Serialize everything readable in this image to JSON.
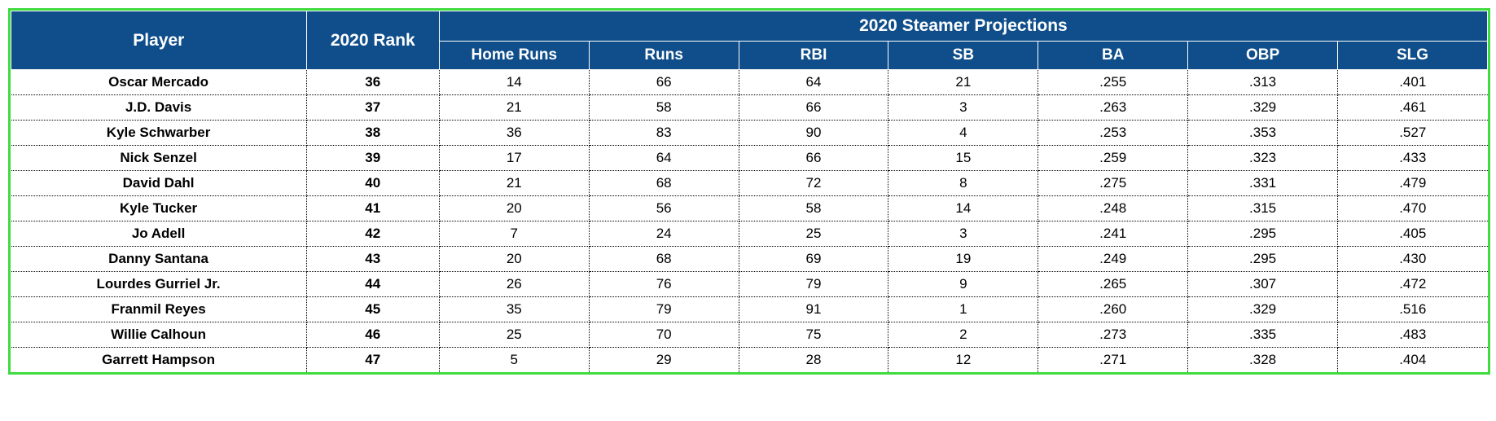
{
  "table": {
    "type": "table",
    "border_color": "#3fdb3f",
    "header_bg": "#0f4e8a",
    "header_text_color": "#ffffff",
    "body_bg": "#ffffff",
    "body_text_color": "#000000",
    "row_divider_color": "#000000",
    "header_group_label": "2020 Steamer Projections",
    "columns": {
      "player": "Player",
      "rank": "2020 Rank",
      "hr": "Home Runs",
      "runs": "Runs",
      "rbi": "RBI",
      "sb": "SB",
      "ba": "BA",
      "obp": "OBP",
      "slg": "SLG"
    },
    "rows": [
      {
        "player": "Oscar Mercado",
        "rank": "36",
        "hr": "14",
        "runs": "66",
        "rbi": "64",
        "sb": "21",
        "ba": ".255",
        "obp": ".313",
        "slg": ".401"
      },
      {
        "player": "J.D. Davis",
        "rank": "37",
        "hr": "21",
        "runs": "58",
        "rbi": "66",
        "sb": "3",
        "ba": ".263",
        "obp": ".329",
        "slg": ".461"
      },
      {
        "player": "Kyle Schwarber",
        "rank": "38",
        "hr": "36",
        "runs": "83",
        "rbi": "90",
        "sb": "4",
        "ba": ".253",
        "obp": ".353",
        "slg": ".527"
      },
      {
        "player": "Nick Senzel",
        "rank": "39",
        "hr": "17",
        "runs": "64",
        "rbi": "66",
        "sb": "15",
        "ba": ".259",
        "obp": ".323",
        "slg": ".433"
      },
      {
        "player": "David Dahl",
        "rank": "40",
        "hr": "21",
        "runs": "68",
        "rbi": "72",
        "sb": "8",
        "ba": ".275",
        "obp": ".331",
        "slg": ".479"
      },
      {
        "player": "Kyle Tucker",
        "rank": "41",
        "hr": "20",
        "runs": "56",
        "rbi": "58",
        "sb": "14",
        "ba": ".248",
        "obp": ".315",
        "slg": ".470"
      },
      {
        "player": "Jo Adell",
        "rank": "42",
        "hr": "7",
        "runs": "24",
        "rbi": "25",
        "sb": "3",
        "ba": ".241",
        "obp": ".295",
        "slg": ".405"
      },
      {
        "player": "Danny Santana",
        "rank": "43",
        "hr": "20",
        "runs": "68",
        "rbi": "69",
        "sb": "19",
        "ba": ".249",
        "obp": ".295",
        "slg": ".430"
      },
      {
        "player": "Lourdes Gurriel Jr.",
        "rank": "44",
        "hr": "26",
        "runs": "76",
        "rbi": "79",
        "sb": "9",
        "ba": ".265",
        "obp": ".307",
        "slg": ".472"
      },
      {
        "player": "Franmil Reyes",
        "rank": "45",
        "hr": "35",
        "runs": "79",
        "rbi": "91",
        "sb": "1",
        "ba": ".260",
        "obp": ".329",
        "slg": ".516"
      },
      {
        "player": "Willie Calhoun",
        "rank": "46",
        "hr": "25",
        "runs": "70",
        "rbi": "75",
        "sb": "2",
        "ba": ".273",
        "obp": ".335",
        "slg": ".483"
      },
      {
        "player": "Garrett Hampson",
        "rank": "47",
        "hr": "5",
        "runs": "29",
        "rbi": "28",
        "sb": "12",
        "ba": ".271",
        "obp": ".328",
        "slg": ".404"
      }
    ]
  }
}
